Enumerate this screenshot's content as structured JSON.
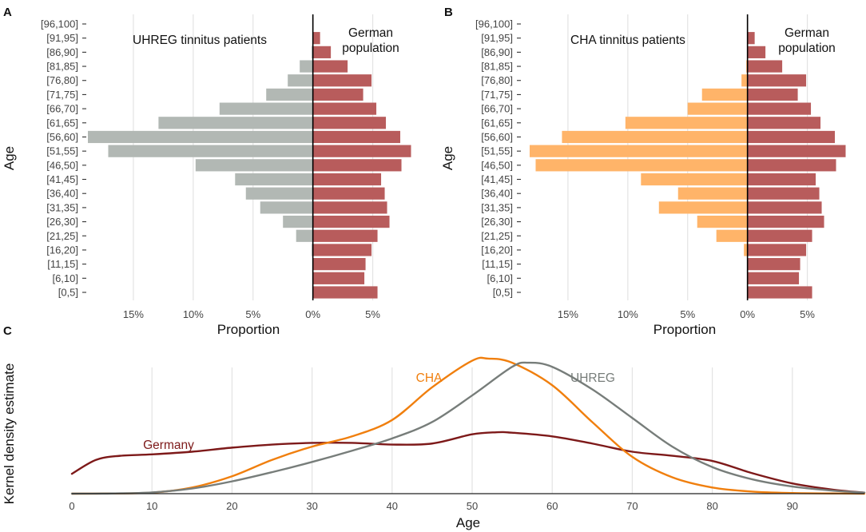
{
  "chart_data": [
    {
      "panel": "A",
      "type": "bar",
      "orientation": "horizontal-population-pyramid",
      "ylabel": "Age",
      "xlabel": "Proportion",
      "x_ticks": [
        "15%",
        "10%",
        "5%",
        "0%",
        "5%"
      ],
      "x_tick_values": [
        -15,
        -10,
        -5,
        0,
        5
      ],
      "xlim": [
        -18.8,
        8.3
      ],
      "categories": [
        "[0,5]",
        "[6,10]",
        "[11,15]",
        "[16,20]",
        "[21,25]",
        "[26,30]",
        "[31,35]",
        "[36,40]",
        "[41,45]",
        "[46,50]",
        "[51,55]",
        "[56,60]",
        "[61,65]",
        "[66,70]",
        "[71,75]",
        "[76,80]",
        "[81,85]",
        "[86,90]",
        "[91,95]",
        "[96,100]"
      ],
      "left_label": "UHREG tinnitus patients",
      "right_label_line1": "German",
      "right_label_line2": "population",
      "series": [
        {
          "name": "UHREG tinnitus patients",
          "side": "left",
          "color": "#b2b8b4",
          "values": [
            0,
            0,
            0,
            0.1,
            1.4,
            2.5,
            4.4,
            5.6,
            6.5,
            9.8,
            17.1,
            18.8,
            12.9,
            7.8,
            3.9,
            2.1,
            1.1,
            0.1,
            0,
            0
          ]
        },
        {
          "name": "German population",
          "side": "right",
          "color": "#b85c5c",
          "values": [
            5.4,
            4.3,
            4.4,
            4.9,
            5.4,
            6.4,
            6.2,
            6.0,
            5.7,
            7.4,
            8.2,
            7.3,
            6.1,
            5.3,
            4.2,
            4.9,
            2.9,
            1.5,
            0.6,
            0.05
          ]
        }
      ]
    },
    {
      "panel": "B",
      "type": "bar",
      "orientation": "horizontal-population-pyramid",
      "ylabel": "Age",
      "xlabel": "Proportion",
      "x_ticks": [
        "15%",
        "10%",
        "5%",
        "0%",
        "5%"
      ],
      "x_tick_values": [
        -15,
        -10,
        -5,
        0,
        5
      ],
      "xlim": [
        -18.8,
        8.3
      ],
      "categories": [
        "[0,5]",
        "[6,10]",
        "[11,15]",
        "[16,20]",
        "[21,25]",
        "[26,30]",
        "[31,35]",
        "[36,40]",
        "[41,45]",
        "[46,50]",
        "[51,55]",
        "[56,60]",
        "[61,65]",
        "[66,70]",
        "[71,75]",
        "[76,80]",
        "[81,85]",
        "[86,90]",
        "[91,95]",
        "[96,100]"
      ],
      "left_label": "CHA tinnitus patients",
      "right_label_line1": "German",
      "right_label_line2": "population",
      "series": [
        {
          "name": "CHA tinnitus patients",
          "side": "left",
          "color": "#ffb469",
          "values": [
            0,
            0,
            0,
            0.3,
            2.6,
            4.2,
            7.4,
            5.8,
            8.9,
            17.7,
            18.2,
            15.5,
            10.2,
            5.0,
            3.8,
            0.5,
            0.1,
            0,
            0,
            0
          ]
        },
        {
          "name": "German population",
          "side": "right",
          "color": "#b85c5c",
          "values": [
            5.4,
            4.3,
            4.4,
            4.9,
            5.4,
            6.4,
            6.2,
            6.0,
            5.7,
            7.4,
            8.2,
            7.3,
            6.1,
            5.3,
            4.2,
            4.9,
            2.9,
            1.5,
            0.6,
            0.05
          ]
        }
      ]
    },
    {
      "panel": "C",
      "type": "line",
      "xlabel": "Age",
      "ylabel": "Kernel density estimate",
      "xlim": [
        0,
        99
      ],
      "x_ticks": [
        0,
        10,
        20,
        30,
        40,
        50,
        60,
        70,
        80,
        90
      ],
      "series": [
        {
          "name": "Germany",
          "color": "#7d1919",
          "x": [
            0,
            3,
            6,
            10,
            15,
            20,
            25,
            30,
            35,
            40,
            45,
            50,
            53,
            55,
            60,
            65,
            70,
            75,
            80,
            85,
            90,
            95,
            99
          ],
          "y": [
            0.0097,
            0.0165,
            0.0185,
            0.0192,
            0.0205,
            0.0225,
            0.024,
            0.0248,
            0.0248,
            0.024,
            0.0245,
            0.029,
            0.03,
            0.0298,
            0.028,
            0.0245,
            0.0205,
            0.0185,
            0.016,
            0.01,
            0.005,
            0.002,
            0.0005
          ]
        },
        {
          "name": "CHA",
          "color": "#f07f0e",
          "x": [
            0,
            5,
            10,
            15,
            20,
            25,
            30,
            35,
            40,
            45,
            50,
            52,
            55,
            60,
            65,
            70,
            75,
            80,
            85,
            90,
            95,
            99
          ],
          "y": [
            0.0,
            0.0001,
            0.0005,
            0.003,
            0.0085,
            0.0165,
            0.023,
            0.028,
            0.036,
            0.052,
            0.065,
            0.066,
            0.064,
            0.053,
            0.035,
            0.018,
            0.008,
            0.003,
            0.001,
            0.0003,
            0.0001,
            0.0
          ]
        },
        {
          "name": "UHREG",
          "color": "#777d7a",
          "x": [
            0,
            5,
            10,
            15,
            20,
            25,
            30,
            35,
            40,
            45,
            50,
            55,
            57,
            60,
            65,
            70,
            75,
            80,
            85,
            90,
            95,
            99
          ],
          "y": [
            0.0,
            0.0001,
            0.0006,
            0.0025,
            0.006,
            0.0105,
            0.0155,
            0.021,
            0.027,
            0.035,
            0.048,
            0.062,
            0.064,
            0.062,
            0.051,
            0.037,
            0.023,
            0.013,
            0.007,
            0.0035,
            0.0015,
            0.0005
          ]
        }
      ],
      "labels": [
        "Germany",
        "CHA",
        "UHREG"
      ]
    }
  ],
  "panel_letters": [
    "A",
    "B",
    "C"
  ]
}
